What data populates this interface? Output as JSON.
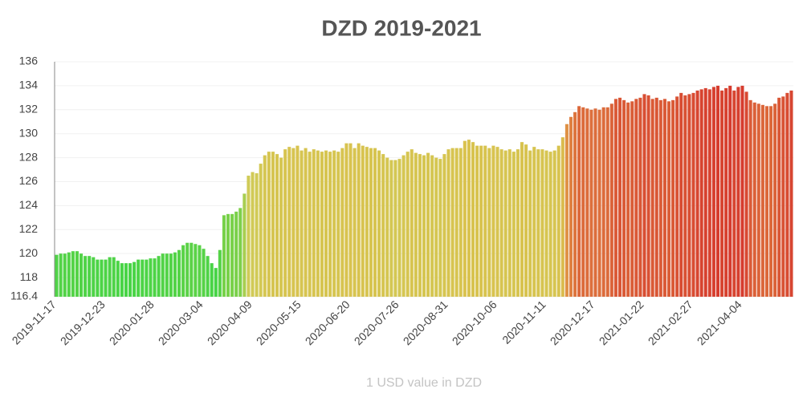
{
  "chart_data": {
    "type": "bar",
    "title": "DZD 2019-2021",
    "x_label": "1 USD value in DZD",
    "categories": [
      "2019-11-17",
      null,
      null,
      null,
      null,
      null,
      null,
      null,
      null,
      null,
      null,
      null,
      "2019-12-23",
      null,
      null,
      null,
      null,
      null,
      null,
      null,
      null,
      null,
      null,
      null,
      "2020-01-28",
      null,
      null,
      null,
      null,
      null,
      null,
      null,
      null,
      null,
      null,
      null,
      "2020-03-04",
      null,
      null,
      null,
      null,
      null,
      null,
      null,
      null,
      null,
      null,
      null,
      "2020-04-09",
      null,
      null,
      null,
      null,
      null,
      null,
      null,
      null,
      null,
      null,
      null,
      "2020-05-15",
      null,
      null,
      null,
      null,
      null,
      null,
      null,
      null,
      null,
      null,
      null,
      "2020-06-20",
      null,
      null,
      null,
      null,
      null,
      null,
      null,
      null,
      null,
      null,
      null,
      "2020-07-26",
      null,
      null,
      null,
      null,
      null,
      null,
      null,
      null,
      null,
      null,
      null,
      "2020-08-31",
      null,
      null,
      null,
      null,
      null,
      null,
      null,
      null,
      null,
      null,
      null,
      "2020-10-06",
      null,
      null,
      null,
      null,
      null,
      null,
      null,
      null,
      null,
      null,
      null,
      "2020-11-11",
      null,
      null,
      null,
      null,
      null,
      null,
      null,
      null,
      null,
      null,
      null,
      "2020-12-17",
      null,
      null,
      null,
      null,
      null,
      null,
      null,
      null,
      null,
      null,
      null,
      "2021-01-22",
      null,
      null,
      null,
      null,
      null,
      null,
      null,
      null,
      null,
      null,
      null,
      "2021-02-27",
      null,
      null,
      null,
      null,
      null,
      null,
      null,
      null,
      null,
      null,
      null,
      "2021-04-04",
      null,
      null,
      null,
      null,
      null,
      null,
      null,
      null,
      null,
      null,
      null,
      null
    ],
    "values": [
      119.9,
      120.0,
      120.0,
      120.1,
      120.2,
      120.2,
      120.0,
      119.8,
      119.8,
      119.7,
      119.5,
      119.5,
      119.5,
      119.7,
      119.7,
      119.4,
      119.2,
      119.2,
      119.2,
      119.3,
      119.5,
      119.5,
      119.5,
      119.6,
      119.6,
      119.8,
      120.0,
      120.0,
      120.0,
      120.1,
      120.3,
      120.7,
      120.9,
      120.9,
      120.8,
      120.7,
      120.4,
      119.8,
      119.2,
      118.8,
      120.3,
      123.2,
      123.3,
      123.3,
      123.5,
      123.8,
      125.0,
      126.5,
      126.8,
      126.7,
      127.5,
      128.2,
      128.5,
      128.5,
      128.3,
      128.0,
      128.7,
      128.9,
      128.8,
      129.0,
      128.6,
      128.8,
      128.5,
      128.7,
      128.6,
      128.5,
      128.6,
      128.5,
      128.6,
      128.5,
      128.8,
      129.2,
      129.2,
      128.8,
      129.2,
      129.0,
      128.9,
      128.8,
      128.8,
      128.6,
      128.3,
      128.0,
      127.8,
      127.8,
      127.9,
      128.2,
      128.5,
      128.7,
      128.4,
      128.3,
      128.2,
      128.4,
      128.2,
      128.0,
      127.9,
      128.3,
      128.7,
      128.8,
      128.8,
      128.8,
      129.4,
      129.5,
      129.3,
      129.0,
      129.0,
      129.0,
      128.8,
      129.0,
      128.9,
      128.7,
      128.6,
      128.7,
      128.5,
      128.7,
      129.3,
      129.1,
      128.6,
      128.9,
      128.7,
      128.7,
      128.6,
      128.5,
      128.6,
      129.0,
      129.7,
      130.8,
      131.4,
      131.8,
      132.3,
      132.2,
      132.1,
      132.0,
      132.1,
      132.0,
      132.2,
      132.2,
      132.5,
      132.9,
      133.0,
      132.8,
      132.6,
      132.7,
      132.9,
      133.0,
      133.3,
      133.2,
      132.9,
      133.0,
      132.8,
      132.9,
      132.7,
      132.8,
      133.1,
      133.4,
      133.2,
      133.3,
      133.4,
      133.6,
      133.7,
      133.8,
      133.7,
      133.9,
      134.0,
      133.6,
      133.8,
      134.0,
      133.6,
      133.9,
      134.0,
      133.5,
      132.8,
      132.6,
      132.5,
      132.4,
      132.3,
      132.3,
      132.5,
      133.0,
      133.1,
      133.4,
      133.6
    ],
    "color_stops": [
      {
        "value": 119,
        "color": "#46d446"
      },
      {
        "value": 124,
        "color": "#80d04a"
      },
      {
        "value": 126,
        "color": "#cfcc58"
      },
      {
        "value": 129.5,
        "color": "#d9c24e"
      },
      {
        "value": 131,
        "color": "#e08a44"
      },
      {
        "value": 134,
        "color": "#d63c2e"
      }
    ],
    "ylim": [
      116.4,
      136
    ],
    "yticks": [
      116.4,
      118,
      120,
      122,
      124,
      126,
      128,
      130,
      132,
      134,
      136
    ],
    "grid": true
  }
}
